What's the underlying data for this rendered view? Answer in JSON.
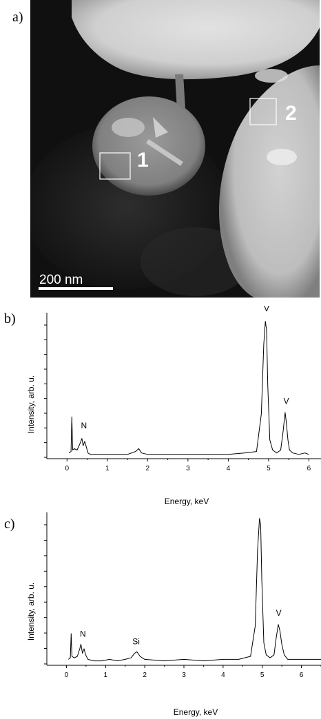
{
  "panels": {
    "a": "a)",
    "b": "b)",
    "c": "c)"
  },
  "micrograph": {
    "region_labels": [
      "1",
      "2"
    ],
    "scale_bar_label": "200 nm"
  },
  "chart_data": [
    {
      "type": "line",
      "xlabel": "Energy, keV",
      "ylabel": "Intensity, arb. u.",
      "xlim": [
        -0.5,
        6.3
      ],
      "ylim": [
        0,
        100
      ],
      "xticks": [
        0,
        1,
        2,
        3,
        4,
        5,
        6
      ],
      "series": [
        {
          "x": [
            0.05,
            0.1,
            0.12,
            0.14,
            0.18,
            0.25,
            0.33,
            0.37,
            0.4,
            0.44,
            0.48,
            0.52,
            0.58,
            0.7,
            0.9,
            1.1,
            1.3,
            1.5,
            1.7,
            1.78,
            1.85,
            2.0,
            2.5,
            3.0,
            3.5,
            4.0,
            4.4,
            4.7,
            4.82,
            4.88,
            4.92,
            4.95,
            4.98,
            5.03,
            5.1,
            5.2,
            5.3,
            5.36,
            5.41,
            5.44,
            5.48,
            5.52,
            5.6,
            5.75,
            5.9,
            6.0
          ],
          "y": [
            3,
            4,
            28,
            5,
            6,
            5,
            10,
            13,
            8,
            11,
            7,
            3,
            2,
            2,
            2,
            2,
            2,
            2,
            4,
            6,
            3,
            2,
            2,
            2,
            2,
            2,
            3,
            4,
            30,
            78,
            94,
            88,
            50,
            12,
            5,
            3,
            5,
            18,
            31,
            24,
            12,
            5,
            3,
            2,
            3,
            2
          ]
        }
      ],
      "annotations": [
        {
          "text": "N",
          "x": 0.42,
          "y": 19
        },
        {
          "text": "V",
          "x": 4.95,
          "y": 100
        },
        {
          "text": "V",
          "x": 5.44,
          "y": 36
        }
      ]
    },
    {
      "type": "line",
      "xlabel": "Energy, keV",
      "ylabel": "Intensity, arb. u.",
      "xlim": [
        -0.5,
        6.5
      ],
      "ylim": [
        0,
        100
      ],
      "xticks": [
        0,
        1,
        2,
        3,
        4,
        5,
        6
      ],
      "series": [
        {
          "x": [
            0.05,
            0.1,
            0.12,
            0.14,
            0.2,
            0.28,
            0.34,
            0.37,
            0.41,
            0.45,
            0.49,
            0.55,
            0.7,
            0.9,
            1.1,
            1.3,
            1.5,
            1.65,
            1.74,
            1.8,
            1.88,
            2.0,
            2.5,
            3.0,
            3.5,
            4.0,
            4.4,
            4.7,
            4.82,
            4.88,
            4.93,
            4.96,
            4.99,
            5.04,
            5.1,
            5.2,
            5.3,
            5.36,
            5.41,
            5.45,
            5.5,
            5.56,
            5.65,
            5.8,
            6.0,
            6.2,
            6.5
          ],
          "y": [
            3,
            4,
            20,
            5,
            4,
            5,
            10,
            13,
            7,
            10,
            6,
            3,
            2,
            2,
            3,
            2,
            3,
            4,
            7,
            8,
            5,
            3,
            2,
            3,
            2,
            3,
            3,
            5,
            25,
            75,
            96,
            92,
            55,
            14,
            6,
            4,
            6,
            18,
            26,
            22,
            13,
            6,
            3,
            3,
            3,
            3,
            3
          ]
        }
      ],
      "annotations": [
        {
          "text": "N",
          "x": 0.42,
          "y": 17
        },
        {
          "text": "Si",
          "x": 1.78,
          "y": 12
        },
        {
          "text": "V",
          "x": 4.95,
          "y": 100
        },
        {
          "text": "V",
          "x": 5.42,
          "y": 31
        }
      ]
    }
  ]
}
